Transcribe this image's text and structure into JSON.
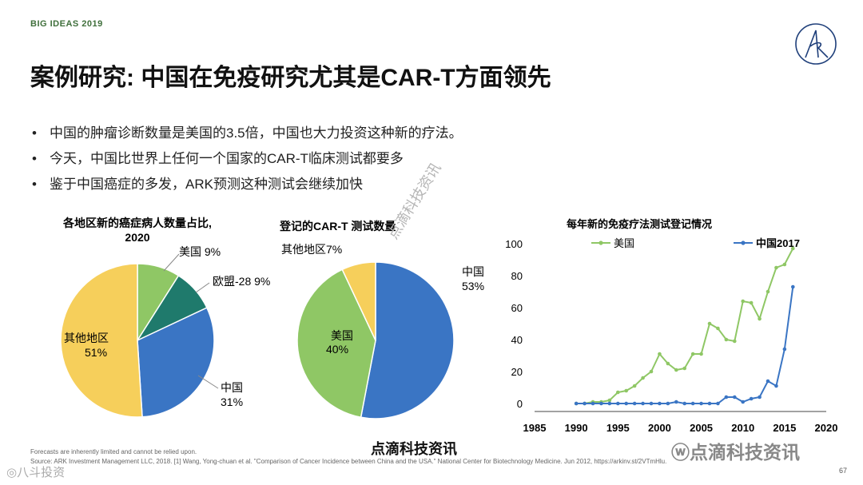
{
  "header": {
    "brand": "BIG IDEAS 2019",
    "title": "案例研究: 中国在免疫研究尤其是CAR-T方面领先"
  },
  "bullets": [
    "中国的肿瘤诊断数量是美国的3.5倍，中国也大力投资这种新的疗法。",
    "今天，中国比世界上任何一个国家的CAR-T临床测试都要多",
    "鉴于中国癌症的多发，ARK预测这种测试会继续加快"
  ],
  "colors": {
    "china": "#3a75c4",
    "usa": "#8fc765",
    "eu": "#1f7a6c",
    "other": "#f6cf5b",
    "title_green": "#3f6f3b"
  },
  "chart_data": [
    {
      "type": "pie",
      "title_line1": "各地区新的癌症病人数量占比,",
      "title_line2": "2020",
      "slices": [
        {
          "name": "美国",
          "value": 9,
          "label": "美国 9%"
        },
        {
          "name": "欧盟-28",
          "value": 9,
          "label": "欧盟-28 9%"
        },
        {
          "name": "中国",
          "value": 31,
          "label_name": "中国",
          "label_pct": "31%"
        },
        {
          "name": "其他地区",
          "value": 51,
          "label_name": "其他地区",
          "label_pct": "51%"
        }
      ]
    },
    {
      "type": "pie",
      "title": "登记的CAR-T 测试数量",
      "slices": [
        {
          "name": "中国",
          "value": 53,
          "label_name": "中国",
          "label_pct": "53%"
        },
        {
          "name": "美国",
          "value": 40,
          "label_name": "美国",
          "label_pct": "40%"
        },
        {
          "name": "其他地区",
          "value": 7,
          "label": "其他地区7%"
        }
      ]
    },
    {
      "type": "line",
      "title": "每年新的免疫疗法测试登记情况",
      "xlim": [
        1985,
        2020
      ],
      "ylim": [
        0,
        100
      ],
      "xticks": [
        1985,
        1990,
        1995,
        2000,
        2005,
        2010,
        2015,
        2020
      ],
      "yticks": [
        0,
        20,
        40,
        60,
        80,
        100
      ],
      "legend": "top",
      "series": [
        {
          "name": "美国",
          "x": [
            1990,
            1991,
            1992,
            1993,
            1994,
            1995,
            1996,
            1997,
            1998,
            1999,
            2000,
            2001,
            2002,
            2003,
            2004,
            2005,
            2006,
            2007,
            2008,
            2009,
            2010,
            2011,
            2012,
            2013,
            2014,
            2015,
            2016
          ],
          "y": [
            0,
            0,
            1,
            1,
            2,
            7,
            8,
            11,
            16,
            20,
            31,
            25,
            21,
            22,
            31,
            31,
            50,
            47,
            40,
            39,
            64,
            63,
            53,
            70,
            85,
            87,
            97
          ]
        },
        {
          "name": "中国2017",
          "x": [
            1990,
            1991,
            1992,
            1993,
            1994,
            1995,
            1996,
            1997,
            1998,
            1999,
            2000,
            2001,
            2002,
            2003,
            2004,
            2005,
            2006,
            2007,
            2008,
            2009,
            2010,
            2011,
            2012,
            2013,
            2014,
            2015,
            2016
          ],
          "y": [
            0,
            0,
            0,
            0,
            0,
            0,
            0,
            0,
            0,
            0,
            0,
            0,
            1,
            0,
            0,
            0,
            0,
            0,
            4,
            4,
            1,
            3,
            4,
            14,
            11,
            34,
            73
          ]
        }
      ]
    }
  ],
  "footer": {
    "note1": "Forecasts are inherently limited and cannot be relied upon.",
    "note2": "Source: ARK Investment Management LLC, 2018. [1] Wang, Yong-chuan et al. \"Comparison of Cancer Incidence between China and the USA.\" National Center for Biotechnology Medicine. Jun 2012, https://arkinv.st/2VTmHlu.",
    "page": "67"
  },
  "watermarks": {
    "bottom": "点滴科技资讯",
    "right": "点滴科技资讯",
    "left": "八斗投资",
    "diagonal": "点滴科技资讯"
  }
}
